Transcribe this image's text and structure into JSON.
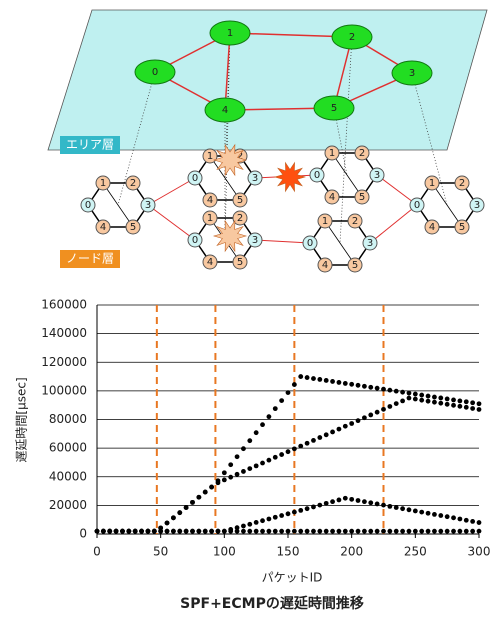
{
  "diagram": {
    "area_layer_label": "エリア層",
    "node_layer_label": "ノード層",
    "area_nodes": [
      "0",
      "1",
      "2",
      "3",
      "4",
      "5"
    ],
    "cluster_node_labels": [
      "0",
      "1",
      "2",
      "3",
      "4",
      "5"
    ]
  },
  "chart_data": {
    "type": "scatter",
    "title": "SPF+ECMPの遅延時間推移",
    "xlabel": "パケットID",
    "ylabel": "遅延時間[μsec]",
    "xlim": [
      0,
      300
    ],
    "xticks": [
      0,
      50,
      100,
      150,
      200,
      250,
      300
    ],
    "ylim": [
      0,
      160000
    ],
    "yticks": [
      0,
      20000,
      40000,
      60000,
      80000,
      100000,
      120000,
      140000,
      160000
    ],
    "grid": true,
    "vlines": [
      47,
      93,
      155,
      225
    ],
    "vline_color": "#e87722",
    "x": [
      0,
      5,
      10,
      15,
      20,
      25,
      30,
      35,
      40,
      45,
      50,
      55,
      60,
      65,
      70,
      75,
      80,
      85,
      90,
      95,
      100,
      105,
      110,
      115,
      120,
      125,
      130,
      135,
      140,
      145,
      150,
      155,
      160,
      165,
      170,
      175,
      180,
      185,
      190,
      195,
      200,
      205,
      210,
      215,
      220,
      225,
      230,
      235,
      240,
      245,
      250,
      255,
      260,
      265,
      270,
      275,
      280,
      285,
      290,
      295,
      300
    ],
    "series": [
      {
        "color": "#000000",
        "values": [
          2000,
          2000,
          2000,
          2000,
          2000,
          2000,
          2000,
          2000,
          2000,
          2000,
          4200,
          7700,
          11300,
          14900,
          18500,
          22100,
          25700,
          29300,
          32800,
          37200,
          42800,
          48400,
          54000,
          59600,
          65200,
          70800,
          76400,
          82000,
          87600,
          93200,
          98800,
          104400,
          110000,
          109300,
          108600,
          108000,
          107300,
          106600,
          105900,
          105200,
          104600,
          103900,
          103200,
          102500,
          101900,
          101200,
          100500,
          99800,
          99100,
          98500,
          97800,
          97100,
          96400,
          95700,
          95100,
          94400,
          93700,
          93000,
          92400,
          91700,
          91000
        ]
      },
      {
        "color": "#000000",
        "values": [
          2000,
          2000,
          2000,
          2000,
          2000,
          2000,
          2000,
          2000,
          2000,
          2000,
          4200,
          7700,
          11300,
          14900,
          18500,
          22100,
          25700,
          29300,
          32800,
          35800,
          37800,
          39700,
          41700,
          43700,
          45700,
          47600,
          49600,
          51600,
          53600,
          55500,
          57500,
          59500,
          61400,
          63400,
          65400,
          67400,
          69300,
          71300,
          73300,
          75300,
          77200,
          79200,
          81200,
          83200,
          85100,
          87100,
          89100,
          91100,
          93000,
          95000,
          94300,
          93500,
          92800,
          92100,
          91400,
          90600,
          89900,
          89200,
          88500,
          87700,
          87000
        ]
      },
      {
        "color": "#000000",
        "values": [
          2000,
          2000,
          2000,
          2000,
          2000,
          2000,
          2000,
          2000,
          2000,
          2000,
          2000,
          2000,
          2000,
          2000,
          2000,
          2000,
          2000,
          2000,
          2000,
          2000,
          2000,
          3200,
          4400,
          5600,
          6800,
          8100,
          9300,
          10500,
          11700,
          12900,
          14100,
          15300,
          16500,
          17700,
          18900,
          20200,
          21400,
          22600,
          23800,
          25000,
          24200,
          23400,
          22600,
          21800,
          21000,
          20200,
          19300,
          18500,
          17700,
          16900,
          16100,
          15300,
          14500,
          13700,
          12900,
          12100,
          11300,
          10500,
          9600,
          8800,
          8000
        ]
      },
      {
        "color": "#000000",
        "values": [
          2000,
          2000,
          2000,
          2000,
          2000,
          2000,
          2000,
          2000,
          2000,
          2000,
          2000,
          2000,
          2000,
          2000,
          2000,
          2000,
          2000,
          2000,
          2000,
          2000,
          2000,
          2000,
          2000,
          2000,
          2000,
          2000,
          2000,
          2000,
          2000,
          2000,
          2000,
          2000,
          2000,
          2000,
          2000,
          2000,
          2000,
          2000,
          2000,
          2000,
          2000,
          2000,
          2000,
          2000,
          2000,
          2000,
          2000,
          2000,
          2000,
          2000,
          2000,
          2000,
          2000,
          2000,
          2000,
          2000,
          2000,
          2000,
          2000,
          2000,
          2000
        ]
      }
    ]
  }
}
